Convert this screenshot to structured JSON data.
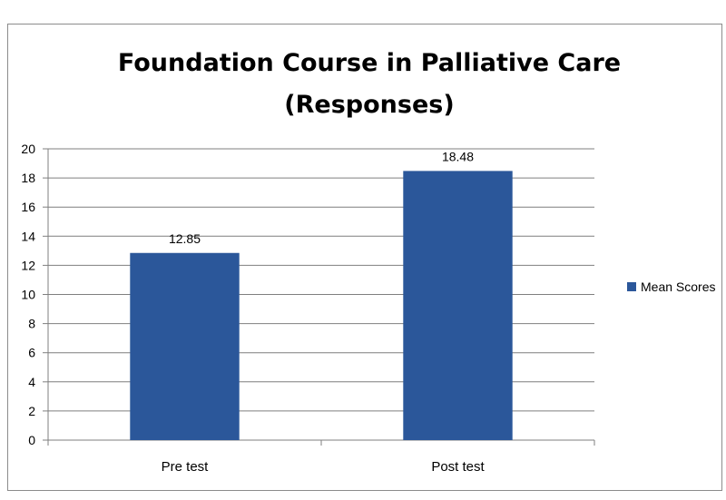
{
  "chart_data": {
    "type": "bar",
    "title": "Foundation Course in Palliative Care",
    "subtitle": "(Responses)",
    "categories": [
      "Pre test",
      "Post test"
    ],
    "series": [
      {
        "name": "Mean Scores",
        "values": [
          12.85,
          18.48
        ],
        "labels": [
          "12.85",
          "18.48"
        ]
      }
    ],
    "ylim": [
      0,
      20
    ],
    "yticks": [
      "0",
      "2",
      "4",
      "6",
      "8",
      "10",
      "12",
      "14",
      "16",
      "18",
      "20"
    ],
    "grid": true,
    "legend_position": "right",
    "colors": {
      "bar": "#2b579a",
      "grid": "#7f7f7f",
      "axis": "#7f7f7f"
    }
  }
}
